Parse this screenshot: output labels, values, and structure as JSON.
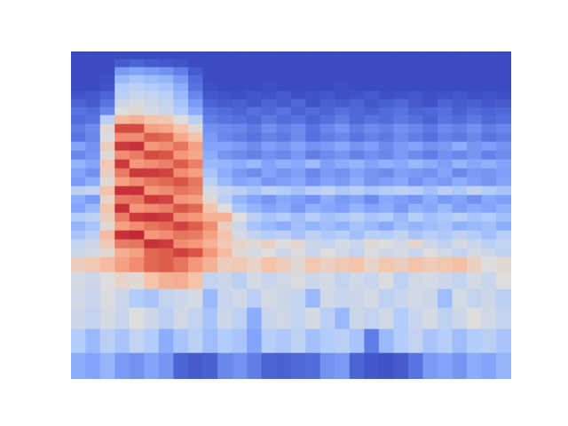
{
  "chart_data": {
    "type": "heatmap",
    "categories": [
      null,
      null,
      null,
      null,
      null,
      null,
      null,
      null,
      null,
      null,
      null,
      null,
      null,
      null,
      null,
      null,
      null,
      null,
      null,
      null,
      null,
      null,
      null,
      null,
      null,
      null,
      null,
      null,
      null,
      null
    ],
    "y": [
      0,
      290,
      560,
      800,
      1010,
      1200,
      1370,
      1470,
      1570,
      1670,
      1770,
      1870,
      1970,
      2070,
      2170,
      2270,
      2370,
      2470,
      2570,
      2670,
      2770,
      2870,
      2970,
      3060,
      3150,
      3240,
      3330,
      3420,
      3510,
      3600,
      3690
    ],
    "ylim": [
      0,
      3690
    ],
    "clim": [
      -80,
      0
    ],
    "tick_labels": false,
    "cells": [
      [
        -58,
        -60,
        -56,
        -62,
        -64,
        -60,
        -63,
        -74,
        -76,
        -75,
        -66,
        -64,
        -68,
        -74,
        -75,
        -73,
        -72,
        -64,
        -62,
        -74,
        -77,
        -78,
        -76,
        -70,
        -62,
        -60,
        -63,
        -58,
        -60,
        -56
      ],
      [
        -50,
        -55,
        -48,
        -52,
        -46,
        -50,
        -58,
        -52,
        -48,
        -54,
        -50,
        -52,
        -60,
        -49,
        -51,
        -47,
        -53,
        -50,
        -48,
        -52,
        -68,
        -55,
        -50,
        -46,
        -52,
        -49,
        -54,
        -50,
        -48,
        -52
      ],
      [
        -44,
        -46,
        -42,
        -45,
        -40,
        -44,
        -48,
        -43,
        -46,
        -52,
        -44,
        -47,
        -58,
        -45,
        -43,
        -46,
        -42,
        -48,
        -55,
        -44,
        -46,
        -43,
        -50,
        -45,
        -42,
        -47,
        -44,
        -40,
        -43,
        -46
      ],
      [
        -43,
        -45,
        -41,
        -44,
        -50,
        -52,
        -46,
        -44,
        -42,
        -55,
        -45,
        -43,
        -48,
        -42,
        -44,
        -46,
        -55,
        -43,
        -45,
        -44,
        -42,
        -47,
        -45,
        -43,
        -44,
        -54,
        -42,
        -46,
        -44,
        -48
      ],
      [
        -42,
        -44,
        -40,
        -36,
        -38,
        -30,
        -26,
        -25,
        -30,
        -46,
        -44,
        -48,
        -42,
        -45,
        -43,
        -41,
        -44,
        -42,
        -46,
        -43,
        -45,
        -41,
        -47,
        -43,
        -42,
        -44,
        -46,
        -42,
        -45,
        -40
      ],
      [
        -34,
        -32,
        -28,
        -22,
        -18,
        -12,
        -10,
        -14,
        -20,
        -26,
        -34,
        -32,
        -36,
        -30,
        -33,
        -38,
        -31,
        -35,
        -32,
        -30,
        -36,
        -31,
        -34,
        -30,
        -33,
        -31,
        -29,
        -35,
        -40,
        -38
      ],
      [
        -44,
        -42,
        -38,
        -25,
        -22,
        -12,
        -10,
        -7,
        -9,
        -20,
        -28,
        -38,
        -42,
        -40,
        -44,
        -41,
        -45,
        -40,
        -43,
        -46,
        -41,
        -44,
        -42,
        -45,
        -40,
        -43,
        -46,
        -42,
        -44,
        -47
      ],
      [
        -46,
        -44,
        -32,
        -15,
        -14,
        -5,
        -6,
        -18,
        -20,
        -26,
        -32,
        -36,
        -38,
        -35,
        -40,
        -37,
        -44,
        -46,
        -42,
        -45,
        -38,
        -40,
        -43,
        -36,
        -44,
        -47,
        -42,
        -45,
        -48,
        -46
      ],
      [
        -52,
        -48,
        -28,
        -5,
        -4,
        -20,
        -18,
        -14,
        -15,
        -22,
        -30,
        -42,
        -46,
        -50,
        -48,
        -52,
        -47,
        -51,
        -49,
        -53,
        -48,
        -50,
        -46,
        -52,
        -49,
        -51,
        -47,
        -50,
        -53,
        -49
      ],
      [
        -56,
        -52,
        -38,
        -22,
        -18,
        -14,
        -12,
        -7,
        -10,
        -18,
        -34,
        -44,
        -52,
        -55,
        -58,
        -53,
        -56,
        -54,
        -57,
        -52,
        -55,
        -59,
        -53,
        -56,
        -54,
        -52,
        -57,
        -55,
        -53,
        -58
      ],
      [
        -50,
        -47,
        -34,
        -15,
        -6,
        -5,
        -6,
        -18,
        -20,
        -26,
        -26,
        -40,
        -48,
        -52,
        -50,
        -54,
        -49,
        -53,
        -51,
        -48,
        -52,
        -50,
        -55,
        -49,
        -53,
        -51,
        -48,
        -52,
        -50,
        -54
      ],
      [
        -60,
        -55,
        -30,
        -5,
        -20,
        -18,
        -16,
        -9,
        -12,
        -30,
        -40,
        -52,
        -56,
        -60,
        -58,
        -62,
        -57,
        -59,
        -61,
        -56,
        -60,
        -58,
        -62,
        -57,
        -59,
        -55,
        -61,
        -58,
        -60,
        -57
      ],
      [
        -58,
        -62,
        -36,
        -15,
        -14,
        -6,
        -7,
        -20,
        -22,
        -38,
        -48,
        -56,
        -60,
        -63,
        -59,
        -61,
        -64,
        -58,
        -62,
        -60,
        -65,
        -59,
        -61,
        -63,
        -58,
        -62,
        -60,
        -64,
        -59,
        -61
      ],
      [
        -48,
        -46,
        -30,
        -5,
        -5,
        -20,
        -18,
        -14,
        -16,
        -42,
        -46,
        -48,
        -52,
        -47,
        -50,
        -53,
        -49,
        -46,
        -51,
        -48,
        -52,
        -50,
        -47,
        -49,
        -53,
        -48,
        -51,
        -46,
        -50,
        -52
      ],
      [
        -62,
        -58,
        -38,
        -22,
        -18,
        -14,
        -12,
        -9,
        -14,
        -48,
        -55,
        -60,
        -58,
        -63,
        -61,
        -59,
        -64,
        -60,
        -62,
        -58,
        -63,
        -61,
        -59,
        -64,
        -60,
        -62,
        -58,
        -61,
        -63,
        -60
      ],
      [
        -60,
        -64,
        -34,
        -15,
        -6,
        -6,
        -7,
        -18,
        -22,
        -52,
        -58,
        -62,
        -65,
        -60,
        -63,
        -61,
        -66,
        -62,
        -64,
        -60,
        -63,
        -65,
        -61,
        -62,
        -64,
        -60,
        -66,
        -62,
        -63,
        -61
      ],
      [
        -56,
        -60,
        -32,
        -6,
        -20,
        -18,
        -16,
        -10,
        -16,
        -55,
        -56,
        -58,
        -55,
        -60,
        -57,
        -59,
        -54,
        -61,
        -58,
        -56,
        -60,
        -57,
        -59,
        -55,
        -58,
        -61,
        -56,
        -59,
        -57,
        -60
      ],
      [
        -66,
        -63,
        -38,
        -18,
        -15,
        -8,
        -9,
        -20,
        -24,
        -58,
        -63,
        -65,
        -67,
        -64,
        -66,
        -62,
        -68,
        -65,
        -63,
        -67,
        -64,
        -66,
        -62,
        -65,
        -68,
        -64,
        -66,
        -63,
        -67,
        -65
      ],
      [
        -60,
        -64,
        -34,
        -6,
        -5,
        -20,
        -18,
        -14,
        -22,
        -60,
        -60,
        -62,
        -65,
        -61,
        -63,
        -60,
        -64,
        -62,
        -59,
        -63,
        -61,
        -65,
        -62,
        -60,
        -64,
        -62,
        -58,
        -63,
        -61,
        -64
      ],
      [
        -70,
        -66,
        -40,
        -18,
        -18,
        -10,
        -12,
        -24,
        -30,
        -62,
        -66,
        -68,
        -70,
        -67,
        -69,
        -65,
        -71,
        -68,
        -66,
        -70,
        -67,
        -69,
        -65,
        -68,
        -71,
        -67,
        -69,
        -66,
        -70,
        -68
      ],
      [
        -68,
        -65,
        -38,
        -8,
        -8,
        -22,
        -24,
        -30,
        -38,
        -64,
        -65,
        -66,
        -69,
        -64,
        -67,
        -65,
        -70,
        -66,
        -63,
        -68,
        -65,
        -67,
        -64,
        -66,
        -69,
        -65,
        -67,
        -64,
        -68,
        -66
      ],
      [
        -72,
        -70,
        -48,
        -28,
        -26,
        -30,
        -32,
        -40,
        -48,
        -68,
        -70,
        -71,
        -73,
        -69,
        -72,
        -70,
        -74,
        -71,
        -68,
        -73,
        -70,
        -72,
        -69,
        -71,
        -74,
        -70,
        -72,
        -69,
        -73,
        -71
      ],
      [
        -70,
        -72,
        -66,
        -40,
        -38,
        -42,
        -44,
        -50,
        -58,
        -70,
        -72,
        -74,
        -71,
        -73,
        -70,
        -75,
        -72,
        -74,
        -71,
        -73,
        -75,
        -72,
        -70,
        -74,
        -73,
        -71,
        -75,
        -72,
        -74,
        -73
      ],
      [
        -74,
        -76,
        -70,
        -44,
        -42,
        -44,
        -46,
        -52,
        -62,
        -74,
        -76,
        -75,
        -77,
        -74,
        -76,
        -73,
        -78,
        -75,
        -76,
        -74,
        -77,
        -75,
        -73,
        -76,
        -78,
        -74,
        -76,
        -75,
        -77,
        -76
      ],
      [
        -78,
        -77,
        -74,
        -48,
        -45,
        -46,
        -48,
        -55,
        -66,
        -77,
        -78,
        -79,
        -77,
        -78,
        -76,
        -79,
        -78,
        -77,
        -79,
        -78,
        -76,
        -79,
        -78,
        -77,
        -79,
        -78,
        -77,
        -79,
        -78,
        -79
      ],
      [
        -80,
        -80,
        -78,
        -50,
        -48,
        -50,
        -52,
        -58,
        -70,
        -79,
        -80,
        -80,
        -80,
        -79,
        -80,
        -80,
        -80,
        -80,
        -79,
        -80,
        -80,
        -80,
        -80,
        -80,
        -80,
        -80,
        -80,
        -80,
        -80,
        -80
      ],
      [
        -80,
        -80,
        -79,
        -55,
        -52,
        -54,
        -56,
        -62,
        -72,
        -80,
        -80,
        -80,
        -80,
        -80,
        -80,
        -80,
        -80,
        -80,
        -80,
        -80,
        -80,
        -80,
        -80,
        -80,
        -80,
        -80,
        -80,
        -80,
        -80,
        -80
      ],
      [
        -80,
        -80,
        -80,
        -62,
        -60,
        -62,
        -64,
        -68,
        -76,
        -80,
        -80,
        -80,
        -80,
        -80,
        -80,
        -80,
        -80,
        -80,
        -80,
        -80,
        -80,
        -80,
        -80,
        -80,
        -80,
        -80,
        -80,
        -80,
        -80,
        -80
      ],
      [
        -80,
        -80,
        -80,
        -76,
        -74,
        -76,
        -77,
        -78,
        -80,
        -80,
        -80,
        -80,
        -80,
        -80,
        -80,
        -80,
        -80,
        -80,
        -80,
        -80,
        -80,
        -80,
        -80,
        -80,
        -80,
        -80,
        -80,
        -80,
        -80,
        -80
      ],
      [
        -80,
        -80,
        -80,
        -80,
        -80,
        -80,
        -80,
        -80,
        -80,
        -80,
        -80,
        -80,
        -80,
        -80,
        -80,
        -80,
        -80,
        -80,
        -80,
        -80,
        -80,
        -80,
        -80,
        -80,
        -80,
        -80,
        -80,
        -80,
        -80,
        -80
      ]
    ]
  }
}
